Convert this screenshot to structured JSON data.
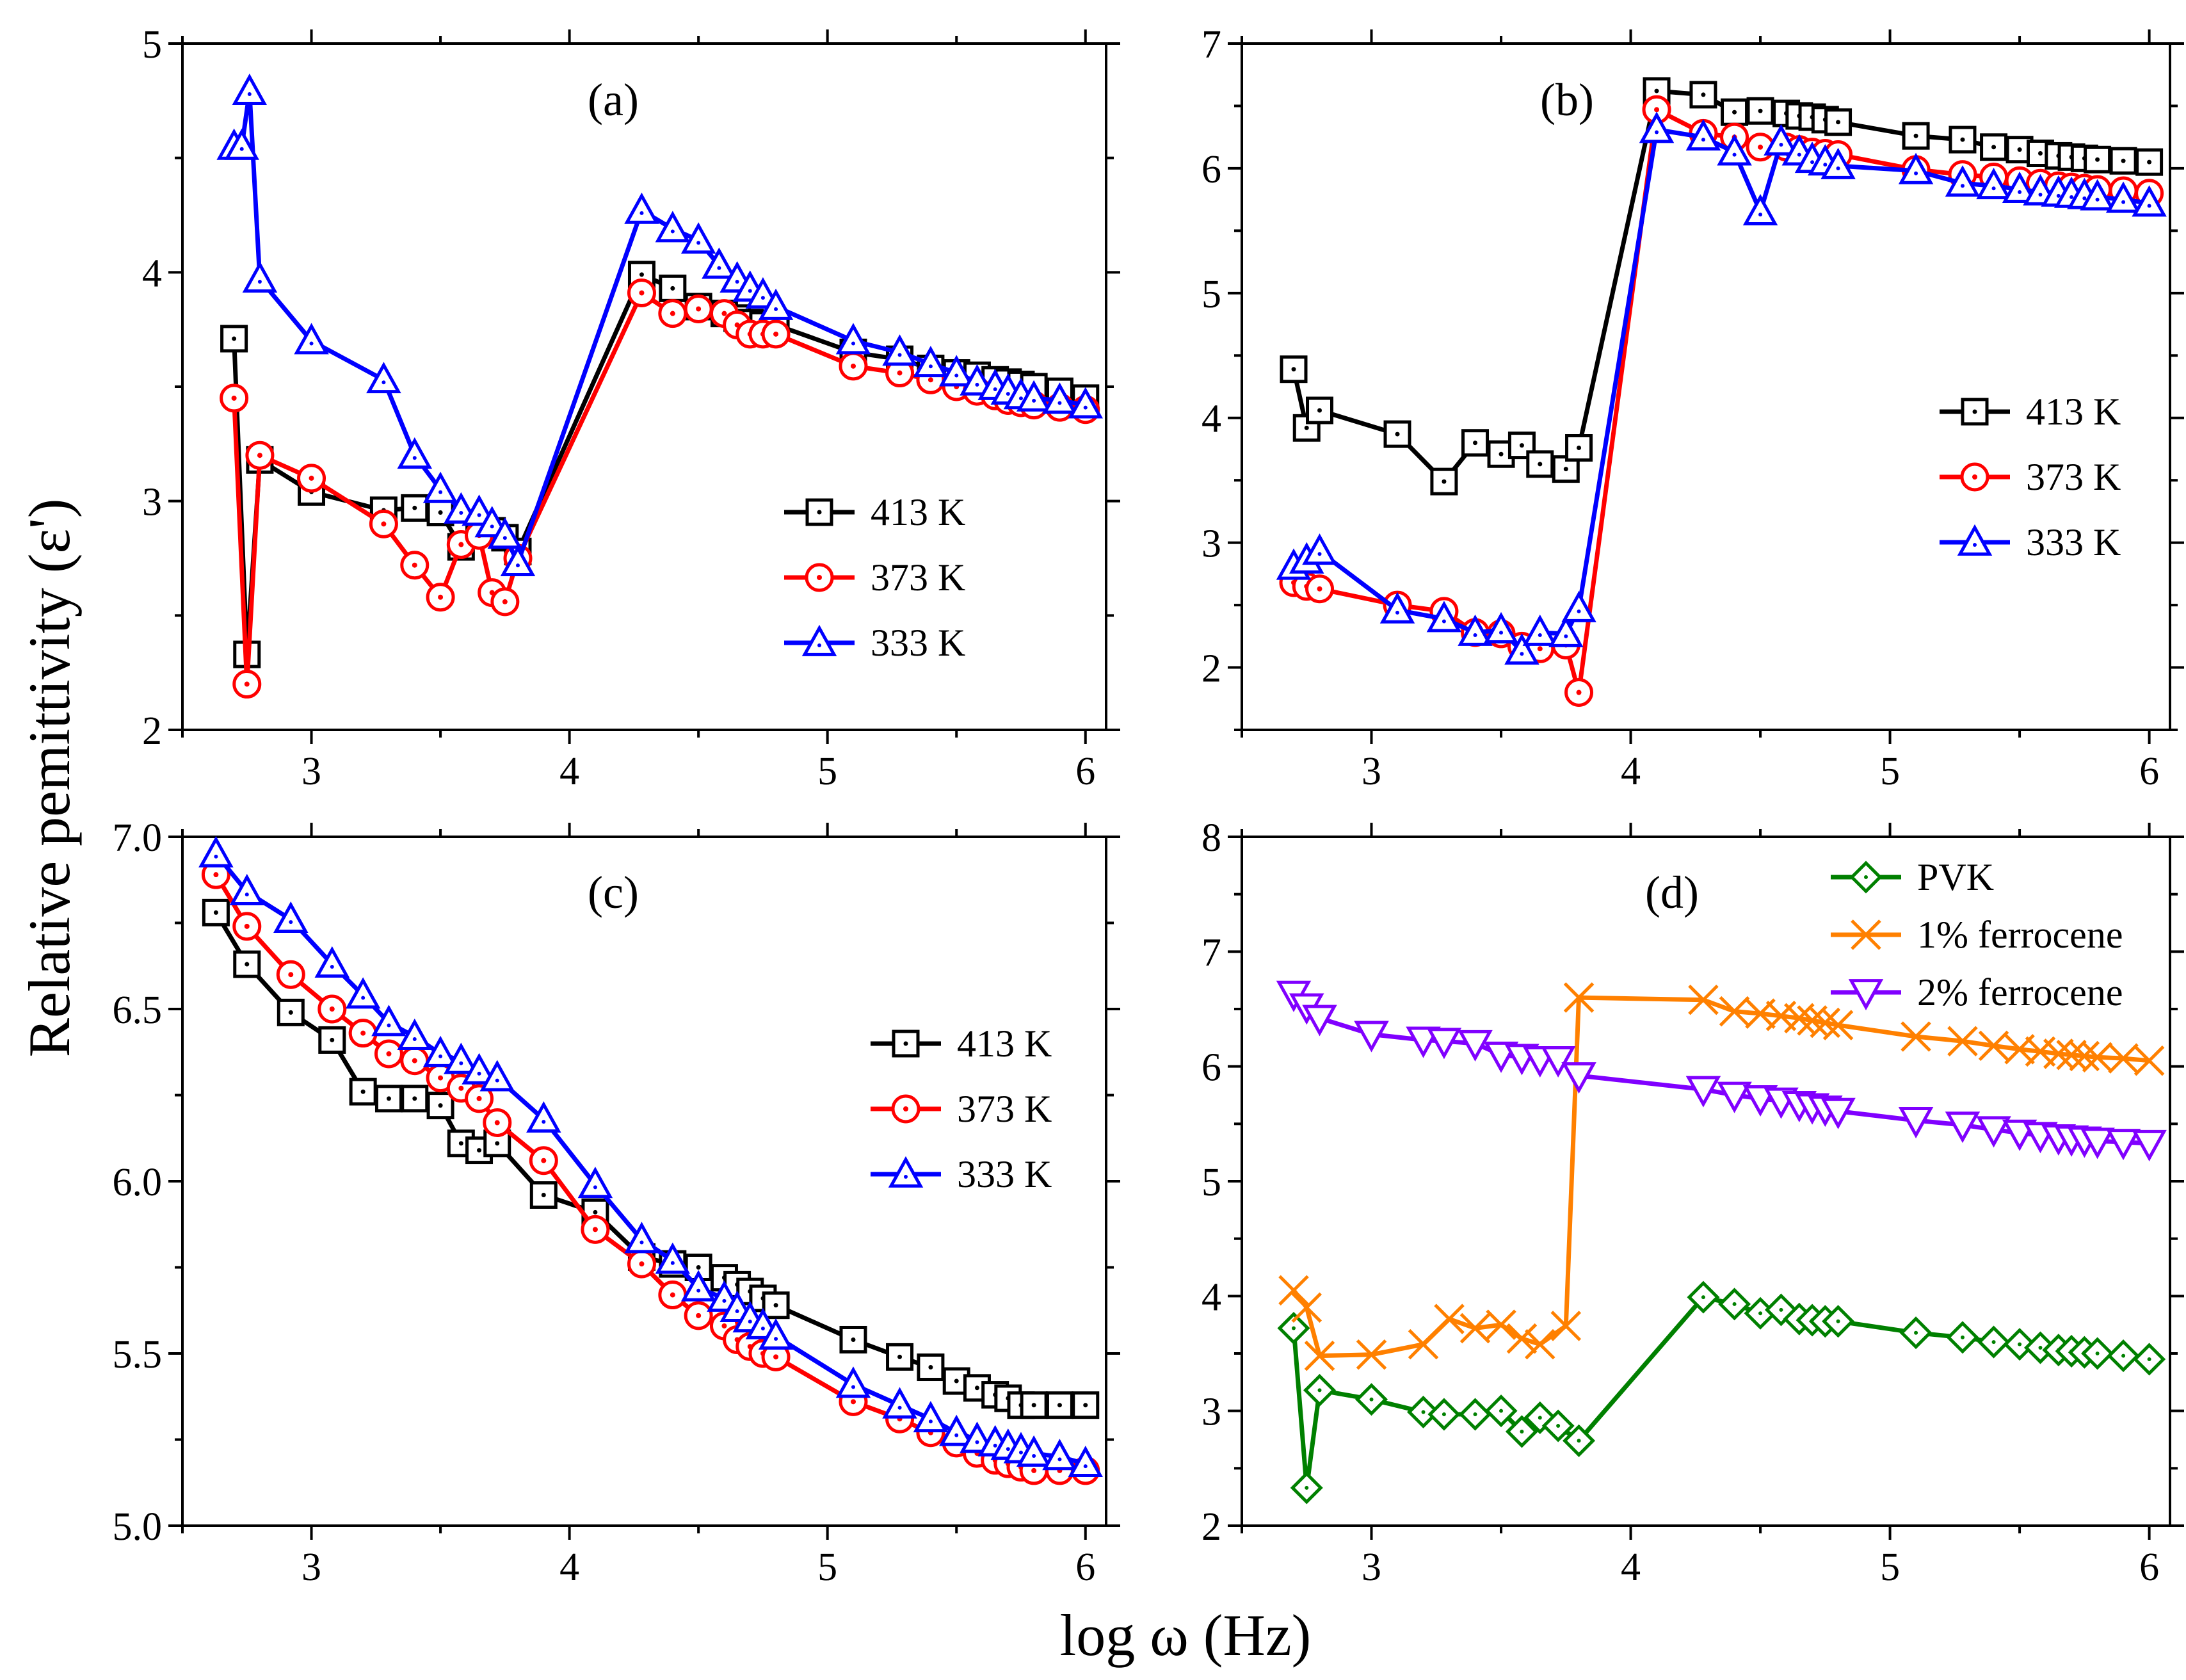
{
  "figure": {
    "ylabel": "Relative pemittivity (ε')",
    "xlabel": "log ω (Hz)"
  },
  "chart_data": [
    {
      "type": "line",
      "panel_label": "(a)",
      "title": "",
      "xlim": [
        2.5,
        6.08
      ],
      "ylim": [
        2,
        5
      ],
      "xticks": [
        3,
        4,
        5,
        6
      ],
      "yticks": [
        2,
        3,
        4,
        5
      ],
      "ytick_labels": [
        "2",
        "3",
        "4",
        "5"
      ],
      "legend_position": "center-right",
      "series": [
        {
          "name": "413 K",
          "color": "#000000",
          "marker": "square",
          "x": [
            2.7,
            2.75,
            2.8,
            3.0,
            3.28,
            3.4,
            3.5,
            3.58,
            3.65,
            3.7,
            3.75,
            3.8,
            4.28,
            4.4,
            4.5,
            4.6,
            4.65,
            4.7,
            4.75,
            4.8,
            5.1,
            5.28,
            5.4,
            5.5,
            5.58,
            5.65,
            5.7,
            5.75,
            5.8,
            5.9,
            6.0
          ],
          "y": [
            3.71,
            2.33,
            3.18,
            3.04,
            2.96,
            2.97,
            2.95,
            2.8,
            2.88,
            2.87,
            2.84,
            2.78,
            3.99,
            3.93,
            3.85,
            3.82,
            3.8,
            3.78,
            3.77,
            3.77,
            3.65,
            3.62,
            3.58,
            3.56,
            3.55,
            3.53,
            3.52,
            3.51,
            3.5,
            3.48,
            3.45
          ]
        },
        {
          "name": "373 K",
          "color": "#ff0000",
          "marker": "circle",
          "x": [
            2.7,
            2.75,
            2.8,
            3.0,
            3.28,
            3.4,
            3.5,
            3.58,
            3.65,
            3.7,
            3.75,
            3.8,
            4.28,
            4.4,
            4.5,
            4.6,
            4.65,
            4.7,
            4.75,
            4.8,
            5.1,
            5.28,
            5.4,
            5.5,
            5.58,
            5.65,
            5.7,
            5.75,
            5.8,
            5.9,
            6.0
          ],
          "y": [
            3.45,
            2.2,
            3.2,
            3.1,
            2.9,
            2.72,
            2.58,
            2.81,
            2.85,
            2.6,
            2.56,
            2.75,
            3.91,
            3.82,
            3.84,
            3.82,
            3.77,
            3.73,
            3.73,
            3.73,
            3.59,
            3.56,
            3.53,
            3.5,
            3.48,
            3.46,
            3.44,
            3.43,
            3.42,
            3.41,
            3.4
          ]
        },
        {
          "name": "333 K",
          "color": "#0000ff",
          "marker": "triangle-up",
          "x": [
            2.7,
            2.73,
            2.76,
            2.8,
            3.0,
            3.28,
            3.4,
            3.5,
            3.58,
            3.65,
            3.7,
            3.75,
            3.8,
            4.28,
            4.4,
            4.5,
            4.58,
            4.65,
            4.7,
            4.75,
            4.8,
            5.1,
            5.28,
            5.4,
            5.5,
            5.58,
            5.65,
            5.7,
            5.75,
            5.8,
            5.9,
            6.0
          ],
          "y": [
            4.55,
            4.55,
            4.79,
            3.97,
            3.7,
            3.53,
            3.2,
            3.05,
            2.96,
            2.95,
            2.9,
            2.85,
            2.73,
            4.27,
            4.19,
            4.14,
            4.03,
            3.97,
            3.93,
            3.9,
            3.85,
            3.7,
            3.65,
            3.6,
            3.56,
            3.52,
            3.5,
            3.48,
            3.46,
            3.45,
            3.44,
            3.42
          ]
        }
      ]
    },
    {
      "type": "line",
      "panel_label": "(b)",
      "title": "",
      "xlim": [
        2.5,
        6.08
      ],
      "ylim": [
        1.5,
        7
      ],
      "xticks": [
        3,
        4,
        5,
        6
      ],
      "yticks": [
        2,
        3,
        4,
        5,
        6,
        7
      ],
      "ytick_labels": [
        "2",
        "3",
        "4",
        "5",
        "6",
        "7"
      ],
      "legend_position": "center-right",
      "series": [
        {
          "name": "413 K",
          "color": "#000000",
          "marker": "square",
          "x": [
            2.7,
            2.75,
            2.8,
            3.1,
            3.28,
            3.4,
            3.5,
            3.58,
            3.65,
            3.75,
            3.8,
            4.1,
            4.28,
            4.4,
            4.5,
            4.6,
            4.65,
            4.7,
            4.75,
            4.8,
            5.1,
            5.28,
            5.4,
            5.5,
            5.58,
            5.65,
            5.7,
            5.75,
            5.8,
            5.9,
            6.0
          ],
          "y": [
            4.39,
            3.92,
            4.06,
            3.87,
            3.49,
            3.8,
            3.71,
            3.78,
            3.63,
            3.59,
            3.76,
            6.62,
            6.59,
            6.45,
            6.46,
            6.44,
            6.42,
            6.41,
            6.39,
            6.37,
            6.26,
            6.23,
            6.17,
            6.15,
            6.12,
            6.1,
            6.09,
            6.08,
            6.07,
            6.06,
            6.05
          ]
        },
        {
          "name": "373 K",
          "color": "#ff0000",
          "marker": "circle",
          "x": [
            2.7,
            2.75,
            2.8,
            3.1,
            3.28,
            3.4,
            3.5,
            3.58,
            3.65,
            3.75,
            3.8,
            4.1,
            4.28,
            4.4,
            4.5,
            4.6,
            4.65,
            4.7,
            4.75,
            4.8,
            5.1,
            5.28,
            5.4,
            5.5,
            5.58,
            5.65,
            5.7,
            5.75,
            5.8,
            5.9,
            6.0
          ],
          "y": [
            2.68,
            2.65,
            2.63,
            2.5,
            2.45,
            2.28,
            2.27,
            2.17,
            2.15,
            2.18,
            1.8,
            6.47,
            6.28,
            6.25,
            6.17,
            6.17,
            6.15,
            6.13,
            6.12,
            6.11,
            5.99,
            5.95,
            5.93,
            5.9,
            5.88,
            5.86,
            5.85,
            5.84,
            5.83,
            5.82,
            5.8
          ]
        },
        {
          "name": "333 K",
          "color": "#0000ff",
          "marker": "triangle-up",
          "x": [
            2.7,
            2.75,
            2.8,
            3.1,
            3.28,
            3.4,
            3.5,
            3.58,
            3.65,
            3.75,
            3.8,
            4.1,
            4.28,
            4.4,
            4.5,
            4.58,
            4.65,
            4.7,
            4.75,
            4.8,
            5.1,
            5.28,
            5.4,
            5.5,
            5.58,
            5.65,
            5.7,
            5.75,
            5.8,
            5.9,
            6.0
          ],
          "y": [
            2.81,
            2.86,
            2.93,
            2.46,
            2.39,
            2.28,
            2.3,
            2.13,
            2.28,
            2.27,
            2.47,
            6.31,
            6.25,
            6.13,
            5.65,
            6.21,
            6.13,
            6.07,
            6.05,
            6.02,
            5.98,
            5.88,
            5.86,
            5.83,
            5.81,
            5.8,
            5.79,
            5.78,
            5.77,
            5.75,
            5.72
          ]
        }
      ]
    },
    {
      "type": "line",
      "panel_label": "(c)",
      "title": "",
      "xlim": [
        2.5,
        6.08
      ],
      "ylim": [
        5.0,
        7.0
      ],
      "xticks": [
        3,
        4,
        5,
        6
      ],
      "yticks": [
        5.0,
        5.5,
        6.0,
        6.5,
        7.0
      ],
      "ytick_labels": [
        "5.0",
        "5.5",
        "6.0",
        "6.5",
        "7.0"
      ],
      "legend_position": "center-right",
      "series": [
        {
          "name": "413 K",
          "color": "#000000",
          "marker": "square",
          "x": [
            2.63,
            2.75,
            2.92,
            3.08,
            3.2,
            3.3,
            3.4,
            3.5,
            3.58,
            3.65,
            3.72,
            3.9,
            4.1,
            4.28,
            4.4,
            4.5,
            4.6,
            4.65,
            4.7,
            4.75,
            4.8,
            5.1,
            5.28,
            5.4,
            5.5,
            5.58,
            5.65,
            5.7,
            5.75,
            5.8,
            5.9,
            6.0
          ],
          "y": [
            6.78,
            6.63,
            6.49,
            6.41,
            6.26,
            6.24,
            6.24,
            6.22,
            6.11,
            6.09,
            6.11,
            5.96,
            5.91,
            5.78,
            5.76,
            5.75,
            5.72,
            5.7,
            5.68,
            5.66,
            5.64,
            5.54,
            5.49,
            5.46,
            5.42,
            5.4,
            5.38,
            5.37,
            5.35,
            5.35,
            5.35,
            5.35
          ]
        },
        {
          "name": "373 K",
          "color": "#ff0000",
          "marker": "circle",
          "x": [
            2.63,
            2.75,
            2.92,
            3.08,
            3.2,
            3.3,
            3.4,
            3.5,
            3.58,
            3.65,
            3.72,
            3.9,
            4.1,
            4.28,
            4.4,
            4.5,
            4.6,
            4.65,
            4.7,
            4.75,
            4.8,
            5.1,
            5.28,
            5.4,
            5.5,
            5.58,
            5.65,
            5.7,
            5.75,
            5.8,
            5.9,
            6.0
          ],
          "y": [
            6.89,
            6.74,
            6.6,
            6.5,
            6.43,
            6.37,
            6.35,
            6.3,
            6.27,
            6.24,
            6.17,
            6.06,
            5.86,
            5.76,
            5.67,
            5.61,
            5.58,
            5.54,
            5.52,
            5.5,
            5.49,
            5.36,
            5.31,
            5.27,
            5.24,
            5.21,
            5.19,
            5.18,
            5.17,
            5.16,
            5.16,
            5.16
          ]
        },
        {
          "name": "333 K",
          "color": "#0000ff",
          "marker": "triangle-up",
          "x": [
            2.63,
            2.75,
            2.92,
            3.08,
            3.2,
            3.3,
            3.4,
            3.5,
            3.58,
            3.65,
            3.72,
            3.9,
            4.1,
            4.28,
            4.4,
            4.5,
            4.6,
            4.65,
            4.7,
            4.75,
            4.8,
            5.1,
            5.28,
            5.4,
            5.5,
            5.58,
            5.65,
            5.7,
            5.75,
            5.8,
            5.9,
            6.0
          ],
          "y": [
            6.95,
            6.84,
            6.76,
            6.63,
            6.54,
            6.46,
            6.42,
            6.37,
            6.35,
            6.32,
            6.3,
            6.18,
            5.99,
            5.83,
            5.77,
            5.69,
            5.66,
            5.63,
            5.6,
            5.58,
            5.55,
            5.41,
            5.35,
            5.31,
            5.27,
            5.25,
            5.24,
            5.23,
            5.22,
            5.21,
            5.2,
            5.18
          ]
        }
      ]
    },
    {
      "type": "line",
      "panel_label": "(d)",
      "title": "",
      "xlim": [
        2.5,
        6.08
      ],
      "ylim": [
        2,
        8
      ],
      "xticks": [
        3,
        4,
        5,
        6
      ],
      "yticks": [
        2,
        3,
        4,
        5,
        6,
        7,
        8
      ],
      "ytick_labels": [
        "2",
        "3",
        "4",
        "5",
        "6",
        "7",
        "8"
      ],
      "legend_position": "top-right",
      "series": [
        {
          "name": "PVK",
          "color": "#008000",
          "marker": "diamond",
          "x": [
            2.7,
            2.75,
            2.8,
            3.0,
            3.2,
            3.28,
            3.4,
            3.5,
            3.58,
            3.65,
            3.72,
            3.8,
            4.28,
            4.4,
            4.5,
            4.58,
            4.65,
            4.7,
            4.75,
            4.8,
            5.1,
            5.28,
            5.4,
            5.5,
            5.58,
            5.65,
            5.7,
            5.75,
            5.8,
            5.9,
            6.0
          ],
          "y": [
            3.72,
            2.33,
            3.18,
            3.1,
            2.99,
            2.97,
            2.97,
            3.0,
            2.82,
            2.94,
            2.87,
            2.74,
            3.99,
            3.93,
            3.85,
            3.88,
            3.8,
            3.79,
            3.78,
            3.78,
            3.68,
            3.64,
            3.6,
            3.58,
            3.55,
            3.53,
            3.52,
            3.51,
            3.5,
            3.48,
            3.45
          ]
        },
        {
          "name": "1% ferrocene",
          "color": "#ff8000",
          "marker": "x",
          "x": [
            2.7,
            2.75,
            2.8,
            3.0,
            3.2,
            3.3,
            3.4,
            3.5,
            3.58,
            3.65,
            3.75,
            3.8,
            4.28,
            4.4,
            4.5,
            4.58,
            4.65,
            4.7,
            4.75,
            4.8,
            5.1,
            5.28,
            5.4,
            5.5,
            5.58,
            5.65,
            5.7,
            5.75,
            5.8,
            5.9,
            6.0
          ],
          "y": [
            4.05,
            3.9,
            3.48,
            3.49,
            3.58,
            3.8,
            3.72,
            3.75,
            3.63,
            3.58,
            3.74,
            6.6,
            6.58,
            6.48,
            6.46,
            6.44,
            6.42,
            6.4,
            6.38,
            6.36,
            6.26,
            6.22,
            6.18,
            6.15,
            6.13,
            6.11,
            6.1,
            6.09,
            6.08,
            6.07,
            6.05
          ]
        },
        {
          "name": "2% ferrocene",
          "color": "#8000ff",
          "marker": "triangle-down",
          "x": [
            2.7,
            2.75,
            2.8,
            3.0,
            3.2,
            3.28,
            3.4,
            3.5,
            3.58,
            3.65,
            3.72,
            3.8,
            4.28,
            4.4,
            4.5,
            4.58,
            4.65,
            4.7,
            4.75,
            4.8,
            5.1,
            5.28,
            5.4,
            5.5,
            5.58,
            5.65,
            5.7,
            5.75,
            5.8,
            5.9,
            6.0
          ],
          "y": [
            6.63,
            6.52,
            6.42,
            6.28,
            6.23,
            6.22,
            6.2,
            6.1,
            6.08,
            6.06,
            6.06,
            5.92,
            5.8,
            5.75,
            5.72,
            5.7,
            5.67,
            5.65,
            5.63,
            5.61,
            5.53,
            5.49,
            5.45,
            5.42,
            5.4,
            5.38,
            5.37,
            5.36,
            5.35,
            5.34,
            5.33
          ]
        }
      ]
    }
  ]
}
